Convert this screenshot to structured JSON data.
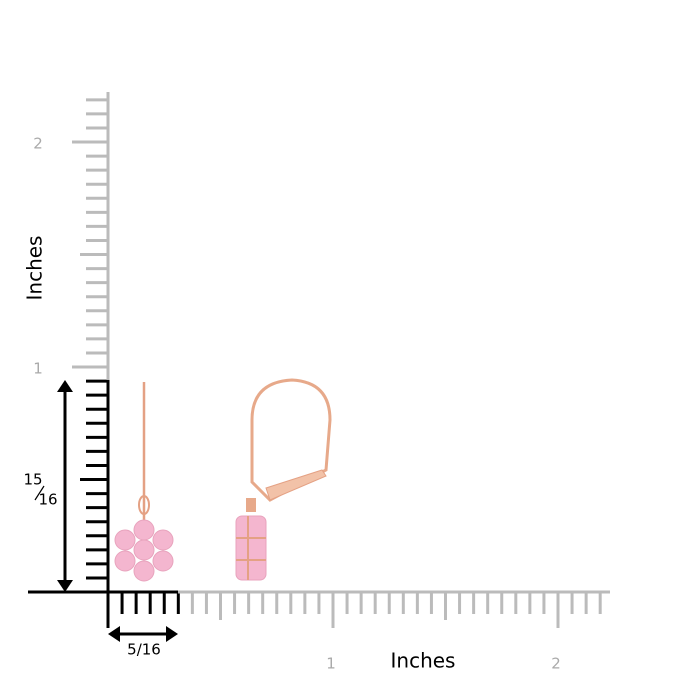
{
  "ruler": {
    "y_label": "Inches",
    "x_label": "Inches",
    "y_ticks": [
      "1",
      "2"
    ],
    "x_ticks": [
      "1",
      "2"
    ]
  },
  "dimensions": {
    "height": {
      "numerator": "15",
      "denominator": "16"
    },
    "width": "5/16"
  }
}
